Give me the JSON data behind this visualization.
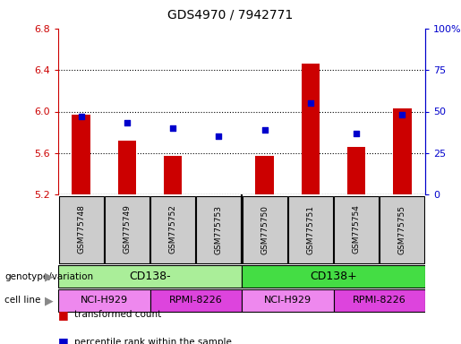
{
  "title": "GDS4970 / 7942771",
  "samples": [
    "GSM775748",
    "GSM775749",
    "GSM775752",
    "GSM775753",
    "GSM775750",
    "GSM775751",
    "GSM775754",
    "GSM775755"
  ],
  "transformed_counts": [
    5.97,
    5.72,
    5.57,
    5.2,
    5.57,
    6.46,
    5.66,
    6.03
  ],
  "percentile_ranks": [
    47,
    43,
    40,
    35,
    39,
    55,
    37,
    48
  ],
  "ylim_left": [
    5.2,
    6.8
  ],
  "ylim_right": [
    0,
    100
  ],
  "yticks_left": [
    5.2,
    5.6,
    6.0,
    6.4,
    6.8
  ],
  "yticks_right": [
    0,
    25,
    50,
    75,
    100
  ],
  "ytick_labels_right": [
    "0",
    "25",
    "50",
    "75",
    "100%"
  ],
  "bar_color": "#cc0000",
  "dot_color": "#0000cc",
  "bar_bottom": 5.2,
  "genotype_groups": [
    {
      "label": "CD138-",
      "start": 0,
      "end": 4,
      "color": "#aaee99"
    },
    {
      "label": "CD138+",
      "start": 4,
      "end": 8,
      "color": "#44dd44"
    }
  ],
  "cell_line_groups": [
    {
      "label": "NCI-H929",
      "start": 0,
      "end": 2,
      "color": "#ee88ee"
    },
    {
      "label": "RPMI-8226",
      "start": 2,
      "end": 4,
      "color": "#dd44dd"
    },
    {
      "label": "NCI-H929",
      "start": 4,
      "end": 6,
      "color": "#ee88ee"
    },
    {
      "label": "RPMI-8226",
      "start": 6,
      "end": 8,
      "color": "#dd44dd"
    }
  ],
  "legend_items": [
    {
      "label": "transformed count",
      "color": "#cc0000"
    },
    {
      "label": "percentile rank within the sample",
      "color": "#0000cc"
    }
  ],
  "genotype_label": "genotype/variation",
  "cell_line_label": "cell line",
  "left_tick_color": "#cc0000",
  "right_tick_color": "#0000cc",
  "sample_box_color": "#cccccc",
  "bar_width": 0.4
}
